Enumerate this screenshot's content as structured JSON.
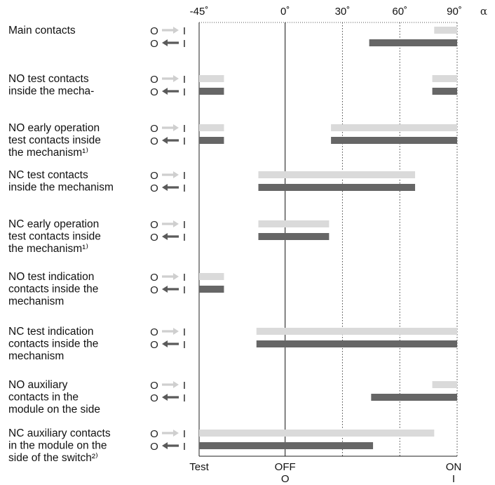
{
  "chart_data": {
    "type": "timing-diagram",
    "axis": {
      "ticks": [
        {
          "value": -45,
          "label": "-45˚"
        },
        {
          "value": 0,
          "label": "0˚"
        },
        {
          "value": 30,
          "label": "30˚"
        },
        {
          "value": 60,
          "label": "60˚"
        },
        {
          "value": 90,
          "label": "90˚"
        }
      ],
      "symbol": "α",
      "range": [
        -45,
        90
      ]
    },
    "direction_labels": {
      "open_to_close": {
        "from": "O",
        "to": "I"
      },
      "close_to_open": {
        "from": "O",
        "to": "I"
      }
    },
    "bottom_labels": [
      {
        "value": -45,
        "lines": [
          "Test"
        ]
      },
      {
        "value": 0,
        "lines": [
          "OFF",
          "O"
        ]
      },
      {
        "value": 90,
        "lines": [
          "ON",
          "I"
        ]
      }
    ],
    "rows": [
      {
        "label": [
          "Main contacts"
        ],
        "open_to_close": [
          [
            78,
            90
          ]
        ],
        "close_to_open": [
          [
            44,
            90
          ]
        ]
      },
      {
        "label": [
          "NO test contacts",
          "inside the mecha-"
        ],
        "open_to_close": [
          [
            -45,
            -32
          ],
          [
            77,
            90
          ]
        ],
        "close_to_open": [
          [
            -45,
            -32
          ],
          [
            77,
            90
          ]
        ]
      },
      {
        "label": [
          "NO early operation",
          "test contacts inside",
          "the mechanism¹⁾"
        ],
        "open_to_close": [
          [
            -45,
            -32
          ],
          [
            24,
            90
          ]
        ],
        "close_to_open": [
          [
            -45,
            -32
          ],
          [
            24,
            90
          ]
        ]
      },
      {
        "label": [
          "NC test contacts",
          "inside the mechanism"
        ],
        "open_to_close": [
          [
            -14,
            68
          ]
        ],
        "close_to_open": [
          [
            -14,
            68
          ]
        ]
      },
      {
        "label": [
          "NC early operation",
          "test contacts inside",
          "the mechanism¹⁾"
        ],
        "open_to_close": [
          [
            -14,
            23
          ]
        ],
        "close_to_open": [
          [
            -14,
            23
          ]
        ]
      },
      {
        "label": [
          "NO test indication",
          "contacts inside the",
          "mechanism"
        ],
        "open_to_close": [
          [
            -45,
            -32
          ]
        ],
        "close_to_open": [
          [
            -45,
            -32
          ]
        ]
      },
      {
        "label": [
          "NC test indication",
          "contacts inside the",
          "mechanism"
        ],
        "open_to_close": [
          [
            -15,
            90
          ]
        ],
        "close_to_open": [
          [
            -15,
            90
          ]
        ]
      },
      {
        "label": [
          "NO auxiliary",
          "contacts in the",
          "module on the side"
        ],
        "open_to_close": [
          [
            77,
            90
          ]
        ],
        "close_to_open": [
          [
            45,
            90
          ]
        ]
      },
      {
        "label": [
          "NC auxiliary contacts",
          "in the module on the",
          "side of the switch²⁾"
        ],
        "open_to_close": [
          [
            -45,
            78
          ]
        ],
        "close_to_open": [
          [
            -45,
            46
          ]
        ]
      }
    ],
    "colors": {
      "open_to_close": "#dadada",
      "close_to_open": "#666666"
    }
  }
}
